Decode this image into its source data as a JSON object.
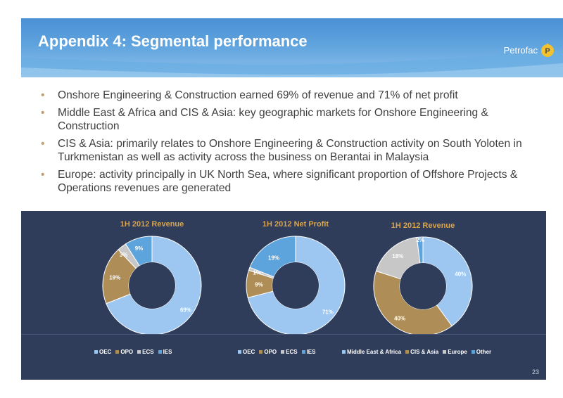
{
  "header": {
    "title": "Appendix 4: Segmental performance",
    "logo_text": "Petrofac"
  },
  "bullets": [
    "Onshore Engineering & Construction earned 69% of revenue and 71% of net profit",
    "Middle East & Africa and CIS & Asia: key geographic markets for Onshore Engineering & Construction",
    "CIS & Asia: primarily relates to Onshore Engineering & Construction activity on South Yoloten in Turkmenistan as well as activity across the business on Berantai in Malaysia",
    "Europe: activity principally in UK North Sea, where significant proportion of Offshore Projects & Operations revenues are generated"
  ],
  "colors": {
    "oec": "#9dc7f0",
    "opo": "#ae8d56",
    "ecs": "#c7c7c7",
    "ies": "#5ea4dc",
    "title_gold": "#d8a44c",
    "panel_bg": "#2f3c5a"
  },
  "page_number": "23",
  "chart_data": [
    {
      "type": "pie",
      "title": "1H 2012 Revenue",
      "categories": [
        "OEC",
        "OPO",
        "ECS",
        "IES"
      ],
      "values": [
        69,
        19,
        3,
        9
      ],
      "labels": [
        "69%",
        "19%",
        "3%",
        "9%"
      ],
      "legend": "bottom"
    },
    {
      "type": "pie",
      "title": "1H 2012 Net Profit",
      "categories": [
        "OEC",
        "OPO",
        "ECS",
        "IES"
      ],
      "values": [
        71,
        9,
        1,
        19
      ],
      "labels": [
        "71%",
        "9%",
        "1%",
        "19%"
      ],
      "legend": "bottom"
    },
    {
      "type": "pie",
      "title": "1H 2012 Revenue",
      "categories": [
        "Middle East & Africa",
        "CIS & Asia",
        "Europe",
        "Other"
      ],
      "values": [
        40,
        40,
        18,
        2
      ],
      "labels": [
        "40%",
        "40%",
        "18%",
        "2%"
      ],
      "legend": "bottom"
    }
  ]
}
